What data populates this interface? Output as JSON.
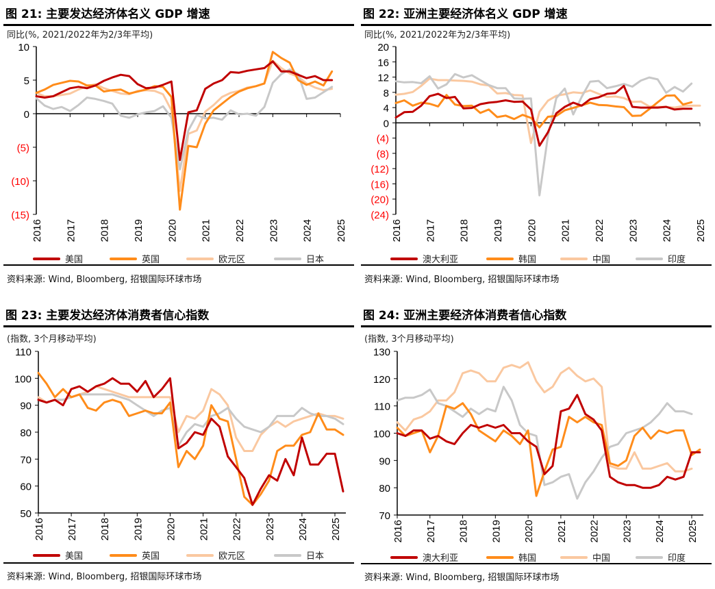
{
  "colors": {
    "s1": "#c00000",
    "s2": "#ff8c1a",
    "s3": "#fac8a0",
    "s4": "#c8c8c8",
    "neg_label": "#ff0000"
  },
  "source": "资料来源: Wind, Bloomberg, 招银国际环球市场",
  "chart_data": [
    {
      "type": "line",
      "title": "图 21: 主要发达经济体名义 GDP 增速",
      "ylabel": "同比(%, 2021/2022年为2/3年平均)",
      "ylim": [
        -15,
        10
      ],
      "yticks": [
        10,
        5,
        0,
        -5,
        -10,
        -15
      ],
      "ytick_labels": [
        "10",
        "5",
        "0",
        "(5)",
        "(10)",
        "(15)"
      ],
      "xlim": [
        2016,
        2025
      ],
      "xtick_labels": [
        "2016",
        "2017",
        "2018",
        "2019",
        "2020",
        "2021",
        "2022",
        "2023",
        "2024",
        "2025"
      ],
      "x_start": 2016,
      "x_step": 0.25,
      "grid": false,
      "legend": "bottom",
      "series": [
        {
          "name": "美国",
          "values": [
            2.6,
            2.4,
            2.6,
            3.2,
            3.8,
            4.0,
            3.8,
            4.2,
            4.9,
            5.4,
            5.8,
            5.6,
            4.4,
            3.8,
            3.9,
            4.3,
            4.8,
            -6.9,
            0.2,
            0.5,
            3.7,
            4.5,
            5.0,
            6.2,
            6.1,
            6.4,
            6.6,
            6.8,
            7.8,
            6.3,
            6.3,
            5.8,
            5.3,
            5.6,
            5.0,
            5.0
          ]
        },
        {
          "name": "英国",
          "values": [
            3.1,
            3.6,
            4.3,
            4.6,
            4.9,
            4.8,
            4.2,
            4.2,
            3.3,
            3.5,
            3.6,
            3.0,
            3.3,
            3.6,
            4.1,
            4.0,
            2.5,
            -14.3,
            -4.8,
            -5.0,
            -1.5,
            0.5,
            1.5,
            2.5,
            3.3,
            3.8,
            4.1,
            4.5,
            9.2,
            8.3,
            7.6,
            5.0,
            4.3,
            4.8,
            4.2,
            6.3
          ]
        },
        {
          "name": "欧元区",
          "values": [
            3.1,
            2.6,
            2.6,
            2.8,
            3.0,
            3.6,
            4.1,
            4.4,
            3.8,
            3.4,
            3.0,
            2.9,
            3.4,
            3.5,
            3.4,
            2.9,
            0.5,
            -11.5,
            -3.0,
            -2.5,
            0.3,
            1.3,
            2.5,
            3.1,
            3.4,
            3.9,
            4.1,
            4.5,
            7.9,
            6.8,
            6.0,
            5.5,
            4.5,
            3.9,
            3.5,
            3.7
          ]
        },
        {
          "name": "日本",
          "values": [
            2.3,
            1.2,
            0.7,
            1.0,
            0.4,
            1.3,
            2.4,
            2.2,
            1.9,
            1.5,
            -0.3,
            -0.6,
            -0.1,
            0.2,
            0.4,
            1.1,
            -0.6,
            -8.3,
            -2.5,
            -0.2,
            -0.7,
            -0.6,
            -0.9,
            0.5,
            -0.1,
            0.0,
            -0.3,
            1.0,
            4.6,
            5.9,
            6.6,
            5.9,
            2.2,
            2.4,
            3.2,
            4.0
          ]
        }
      ]
    },
    {
      "type": "line",
      "title": "图 22: 亚洲主要经济体名义 GDP 增速",
      "ylabel": "同比(%, 2021/2022年为2/3年平均)",
      "ylim": [
        -24,
        20
      ],
      "yticks": [
        20,
        16,
        12,
        8,
        4,
        0,
        -4,
        -8,
        -12,
        -16,
        -20,
        -24
      ],
      "ytick_labels": [
        "20",
        "16",
        "12",
        "8",
        "4",
        "0",
        "(4)",
        "(8)",
        "(12)",
        "(16)",
        "(20)",
        "(24)"
      ],
      "xlim": [
        2016,
        2025
      ],
      "xtick_labels": [
        "2016",
        "2017",
        "2018",
        "2019",
        "2020",
        "2021",
        "2022",
        "2023",
        "2024",
        "2025"
      ],
      "x_start": 2016,
      "x_step": 0.25,
      "grid": false,
      "legend": "bottom",
      "series": [
        {
          "name": "澳大利亚",
          "values": [
            1.4,
            2.8,
            2.9,
            4.5,
            7.0,
            7.6,
            6.5,
            6.8,
            3.8,
            3.9,
            4.9,
            5.3,
            5.5,
            5.9,
            5.5,
            5.6,
            3.5,
            -6.0,
            -2.5,
            2.5,
            4.2,
            5.3,
            4.5,
            6.2,
            6.7,
            7.6,
            7.8,
            9.7,
            4.2,
            4.0,
            4.0,
            4.0,
            4.2,
            3.5,
            3.7,
            3.7
          ]
        },
        {
          "name": "韩国",
          "values": [
            5.2,
            5.9,
            4.5,
            5.3,
            5.0,
            4.3,
            7.3,
            4.8,
            4.4,
            4.5,
            2.6,
            3.5,
            1.5,
            1.9,
            1.0,
            2.1,
            1.3,
            -1.2,
            1.6,
            1.8,
            3.3,
            3.9,
            4.6,
            5.3,
            4.7,
            4.6,
            4.3,
            4.1,
            1.8,
            1.9,
            3.6,
            5.4,
            7.1,
            7.2,
            4.8,
            5.4
          ]
        },
        {
          "name": "中国",
          "values": [
            7.4,
            7.6,
            8.1,
            9.7,
            11.6,
            11.2,
            11.2,
            11.1,
            11.0,
            10.8,
            10.1,
            9.8,
            7.7,
            7.8,
            7.3,
            7.2,
            -5.3,
            2.9,
            5.8,
            7.1,
            7.5,
            8.0,
            7.8,
            8.5,
            7.6,
            6.8,
            6.9,
            6.5,
            5.5,
            5.6,
            4.3,
            4.2,
            4.2,
            4.0,
            4.4,
            4.5,
            4.5
          ]
        },
        {
          "name": "印度",
          "values": [
            10.9,
            10.6,
            10.7,
            10.4,
            12.2,
            9.0,
            10.1,
            12.8,
            11.9,
            12.5,
            11.2,
            9.9,
            9.1,
            9.1,
            6.4,
            6.3,
            6.4,
            -19.0,
            -3.5,
            6.5,
            9.0,
            2.2,
            6.8,
            10.8,
            11.0,
            9.1,
            9.6,
            10.2,
            9.5,
            11.1,
            11.9,
            11.4,
            7.9,
            9.4,
            8.2,
            10.3
          ]
        }
      ]
    },
    {
      "type": "line",
      "title": "图 23: 主要发达经济体消费者信心指数",
      "ylabel": "(指数, 3个月移动平均)",
      "ylim": [
        50,
        110
      ],
      "yticks": [
        110,
        100,
        90,
        80,
        70,
        60,
        50
      ],
      "ytick_labels": [
        "110",
        "100",
        "90",
        "80",
        "70",
        "60",
        "50"
      ],
      "xlim": [
        2016,
        2025
      ],
      "xtick_labels": [
        "2016",
        "2017",
        "2018",
        "2019",
        "2020",
        "2021",
        "2022",
        "2023",
        "2024",
        "2025"
      ],
      "x_start": 2016,
      "x_step": 0.25,
      "grid": false,
      "legend": "bottom",
      "series": [
        {
          "name": "美国",
          "values": [
            92,
            91,
            92,
            90,
            96,
            97,
            95,
            97,
            98,
            100,
            98,
            98,
            95,
            99,
            93,
            96,
            100,
            74,
            76,
            80,
            79,
            85,
            82,
            71,
            67,
            63,
            53,
            59,
            64,
            62,
            70,
            64,
            78,
            68,
            68,
            72,
            72,
            58
          ]
        },
        {
          "name": "英国",
          "values": [
            102,
            98,
            93,
            96,
            93,
            94,
            89,
            88,
            91,
            92,
            91,
            86,
            87,
            88,
            87,
            87,
            91,
            67,
            73,
            70,
            75,
            90,
            85,
            84,
            70,
            56,
            53,
            57,
            62,
            73,
            75,
            75,
            79,
            80,
            87,
            81,
            81,
            79
          ]
        },
        {
          "name": "欧元区",
          "values": [
            93,
            91,
            92,
            92,
            93,
            94,
            95,
            97,
            96,
            95,
            94,
            93,
            93,
            93,
            93,
            93,
            93,
            80,
            86,
            85,
            88,
            96,
            94,
            90,
            78,
            73,
            73,
            79,
            82,
            84,
            82,
            84,
            85,
            86,
            87,
            86,
            86,
            85
          ]
        },
        {
          "name": "日本",
          "values": [
            92,
            91,
            92,
            92,
            93,
            94,
            94,
            94,
            94,
            94,
            93,
            92,
            90,
            88,
            86,
            88,
            89,
            75,
            80,
            83,
            82,
            86,
            87,
            89,
            85,
            82,
            81,
            80,
            82,
            86,
            86,
            86,
            89,
            87,
            86,
            86,
            85,
            83
          ]
        }
      ]
    },
    {
      "type": "line",
      "title": "图 24: 亚洲主要经济体消费者信心指数",
      "ylabel": "(指数, 3个月移动平均)",
      "ylim": [
        70,
        130
      ],
      "yticks": [
        130,
        120,
        110,
        100,
        90,
        80,
        70
      ],
      "ytick_labels": [
        "130",
        "120",
        "110",
        "100",
        "90",
        "80",
        "70"
      ],
      "xlim": [
        2016,
        2025
      ],
      "xtick_labels": [
        "2016",
        "2017",
        "2018",
        "2019",
        "2020",
        "2021",
        "2022",
        "2023",
        "2024",
        "2025"
      ],
      "x_start": 2016,
      "x_step": 0.25,
      "grid": false,
      "legend": "bottom",
      "series": [
        {
          "name": "澳大利亚",
          "values": [
            100,
            99,
            101,
            101,
            98,
            99,
            97,
            96,
            100,
            103,
            102,
            103,
            102,
            103,
            100,
            100,
            97,
            95,
            85,
            88,
            108,
            109,
            114,
            107,
            105,
            101,
            84,
            82,
            81,
            81,
            80,
            80,
            81,
            84,
            83,
            84,
            93,
            93
          ]
        },
        {
          "name": "韩国",
          "values": [
            102,
            99,
            100,
            101,
            93,
            99,
            110,
            109,
            111,
            107,
            101,
            99,
            97,
            101,
            99,
            96,
            101,
            77,
            86,
            94,
            95,
            106,
            104,
            106,
            104,
            103,
            89,
            88,
            90,
            99,
            102,
            98,
            101,
            100,
            101,
            101,
            92,
            94
          ]
        },
        {
          "name": "中国",
          "values": [
            104,
            101,
            105,
            106,
            108,
            112,
            112,
            115,
            122,
            123,
            122,
            119,
            119,
            124,
            125,
            124,
            126,
            119,
            115,
            117,
            122,
            124,
            121,
            119,
            120,
            117,
            88,
            87,
            87,
            93,
            87,
            87,
            88,
            89,
            86,
            86,
            87
          ]
        },
        {
          "name": "印度",
          "values": [
            112,
            113,
            113,
            114,
            116,
            111,
            110,
            108,
            106,
            109,
            107,
            109,
            108,
            117,
            112,
            103,
            100,
            99,
            81,
            82,
            84,
            85,
            76,
            82,
            86,
            91,
            95,
            96,
            100,
            101,
            102,
            104,
            107,
            111,
            108,
            108,
            107
          ]
        }
      ]
    }
  ]
}
